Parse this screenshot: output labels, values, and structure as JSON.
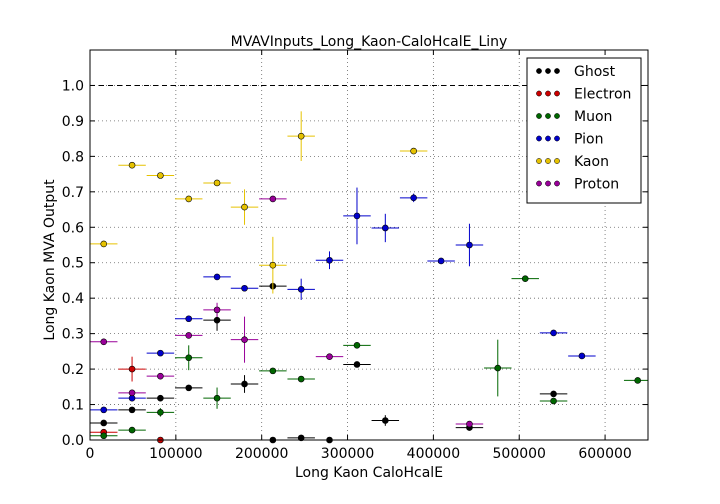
{
  "chart_data": {
    "type": "scatter",
    "title": "MVAVInputs_Long_Kaon-CaloHcalE_Liny",
    "xlabel": "Long Kaon CaloHcalE",
    "ylabel": "Long Kaon MVA Output",
    "xlim": [
      0,
      650000
    ],
    "ylim": [
      0,
      1.1
    ],
    "x_ticks": [
      0,
      100000,
      200000,
      300000,
      400000,
      500000,
      600000
    ],
    "x_tick_labels": [
      "0",
      "100000",
      "200000",
      "300000",
      "400000",
      "500000",
      "600000"
    ],
    "y_ticks": [
      0.0,
      0.1,
      0.2,
      0.3,
      0.4,
      0.5,
      0.6,
      0.7,
      0.8,
      0.9,
      1.0
    ],
    "y_tick_labels": [
      "0.0",
      "0.1",
      "0.2",
      "0.3",
      "0.4",
      "0.5",
      "0.6",
      "0.7",
      "0.8",
      "0.9",
      "1.0"
    ],
    "grid": true,
    "reference_line_y": 1.0,
    "legend_position": "top-right",
    "series": [
      {
        "name": "Ghost",
        "color": "#000000",
        "points": [
          {
            "x": 16000,
            "y": 0.048,
            "xerr": 16000,
            "yerr": 0.004
          },
          {
            "x": 49000,
            "y": 0.085,
            "xerr": 16000,
            "yerr": 0.004
          },
          {
            "x": 82000,
            "y": 0.118,
            "xerr": 16000,
            "yerr": 0.005
          },
          {
            "x": 115000,
            "y": 0.147,
            "xerr": 16000,
            "yerr": 0.006
          },
          {
            "x": 148000,
            "y": 0.338,
            "xerr": 16000,
            "yerr": 0.03
          },
          {
            "x": 180000,
            "y": 0.158,
            "xerr": 16000,
            "yerr": 0.025
          },
          {
            "x": 213000,
            "y": 0.434,
            "xerr": 16000,
            "yerr": 0.01
          },
          {
            "x": 213000,
            "y": 0.0,
            "xerr": 16000,
            "yerr": 0.0
          },
          {
            "x": 246000,
            "y": 0.006,
            "xerr": 16000,
            "yerr": 0.004
          },
          {
            "x": 279000,
            "y": 0.0,
            "xerr": 16000,
            "yerr": 0.0
          },
          {
            "x": 311000,
            "y": 0.213,
            "xerr": 16000,
            "yerr": 0.006
          },
          {
            "x": 344000,
            "y": 0.055,
            "xerr": 16000,
            "yerr": 0.015
          },
          {
            "x": 442000,
            "y": 0.035,
            "xerr": 16000,
            "yerr": 0.003
          },
          {
            "x": 540000,
            "y": 0.13,
            "xerr": 16000,
            "yerr": 0.005
          }
        ]
      },
      {
        "name": "Electron",
        "color": "#cc0000",
        "points": [
          {
            "x": 16000,
            "y": 0.022,
            "xerr": 16000,
            "yerr": 0.004
          },
          {
            "x": 49000,
            "y": 0.2,
            "xerr": 16000,
            "yerr": 0.035
          },
          {
            "x": 82000,
            "y": 0.0,
            "xerr": 16000,
            "yerr": 0.0
          }
        ]
      },
      {
        "name": "Muon",
        "color": "#006600",
        "points": [
          {
            "x": 16000,
            "y": 0.012,
            "xerr": 16000,
            "yerr": 0.004
          },
          {
            "x": 49000,
            "y": 0.028,
            "xerr": 16000,
            "yerr": 0.004
          },
          {
            "x": 82000,
            "y": 0.078,
            "xerr": 16000,
            "yerr": 0.012
          },
          {
            "x": 115000,
            "y": 0.232,
            "xerr": 16000,
            "yerr": 0.035
          },
          {
            "x": 148000,
            "y": 0.118,
            "xerr": 16000,
            "yerr": 0.03
          },
          {
            "x": 213000,
            "y": 0.195,
            "xerr": 16000,
            "yerr": 0.005
          },
          {
            "x": 246000,
            "y": 0.172,
            "xerr": 16000,
            "yerr": 0.005
          },
          {
            "x": 311000,
            "y": 0.267,
            "xerr": 16000,
            "yerr": 0.005
          },
          {
            "x": 475000,
            "y": 0.203,
            "xerr": 16000,
            "yerr": 0.08
          },
          {
            "x": 507000,
            "y": 0.455,
            "xerr": 16000,
            "yerr": 0.005
          },
          {
            "x": 540000,
            "y": 0.11,
            "xerr": 16000,
            "yerr": 0.005
          },
          {
            "x": 638000,
            "y": 0.168,
            "xerr": 16000,
            "yerr": 0.004
          }
        ]
      },
      {
        "name": "Pion",
        "color": "#0000cc",
        "points": [
          {
            "x": 16000,
            "y": 0.085,
            "xerr": 16000,
            "yerr": 0.004
          },
          {
            "x": 49000,
            "y": 0.118,
            "xerr": 16000,
            "yerr": 0.004
          },
          {
            "x": 82000,
            "y": 0.245,
            "xerr": 16000,
            "yerr": 0.005
          },
          {
            "x": 115000,
            "y": 0.342,
            "xerr": 16000,
            "yerr": 0.005
          },
          {
            "x": 148000,
            "y": 0.46,
            "xerr": 16000,
            "yerr": 0.005
          },
          {
            "x": 180000,
            "y": 0.428,
            "xerr": 16000,
            "yerr": 0.008
          },
          {
            "x": 246000,
            "y": 0.425,
            "xerr": 16000,
            "yerr": 0.03
          },
          {
            "x": 279000,
            "y": 0.507,
            "xerr": 16000,
            "yerr": 0.025
          },
          {
            "x": 311000,
            "y": 0.632,
            "xerr": 16000,
            "yerr": 0.08
          },
          {
            "x": 344000,
            "y": 0.598,
            "xerr": 16000,
            "yerr": 0.04
          },
          {
            "x": 377000,
            "y": 0.683,
            "xerr": 16000,
            "yerr": 0.012
          },
          {
            "x": 409000,
            "y": 0.505,
            "xerr": 16000,
            "yerr": 0.004
          },
          {
            "x": 442000,
            "y": 0.55,
            "xerr": 16000,
            "yerr": 0.06
          },
          {
            "x": 540000,
            "y": 0.302,
            "xerr": 16000,
            "yerr": 0.004
          },
          {
            "x": 573000,
            "y": 0.237,
            "xerr": 16000,
            "yerr": 0.004
          }
        ]
      },
      {
        "name": "Kaon",
        "color": "#e6c200",
        "points": [
          {
            "x": 16000,
            "y": 0.553,
            "xerr": 16000,
            "yerr": 0.004
          },
          {
            "x": 49000,
            "y": 0.775,
            "xerr": 16000,
            "yerr": 0.004
          },
          {
            "x": 82000,
            "y": 0.746,
            "xerr": 16000,
            "yerr": 0.004
          },
          {
            "x": 115000,
            "y": 0.68,
            "xerr": 16000,
            "yerr": 0.004
          },
          {
            "x": 148000,
            "y": 0.725,
            "xerr": 16000,
            "yerr": 0.004
          },
          {
            "x": 180000,
            "y": 0.657,
            "xerr": 16000,
            "yerr": 0.05
          },
          {
            "x": 213000,
            "y": 0.493,
            "xerr": 16000,
            "yerr": 0.08
          },
          {
            "x": 246000,
            "y": 0.857,
            "xerr": 16000,
            "yerr": 0.07
          },
          {
            "x": 377000,
            "y": 0.815,
            "xerr": 16000,
            "yerr": 0.004
          }
        ]
      },
      {
        "name": "Proton",
        "color": "#990099",
        "points": [
          {
            "x": 16000,
            "y": 0.277,
            "xerr": 16000,
            "yerr": 0.004
          },
          {
            "x": 49000,
            "y": 0.133,
            "xerr": 16000,
            "yerr": 0.004
          },
          {
            "x": 82000,
            "y": 0.18,
            "xerr": 16000,
            "yerr": 0.004
          },
          {
            "x": 115000,
            "y": 0.295,
            "xerr": 16000,
            "yerr": 0.006
          },
          {
            "x": 148000,
            "y": 0.367,
            "xerr": 16000,
            "yerr": 0.02
          },
          {
            "x": 180000,
            "y": 0.283,
            "xerr": 16000,
            "yerr": 0.065
          },
          {
            "x": 213000,
            "y": 0.68,
            "xerr": 16000,
            "yerr": 0.004
          },
          {
            "x": 279000,
            "y": 0.235,
            "xerr": 16000,
            "yerr": 0.004
          },
          {
            "x": 442000,
            "y": 0.045,
            "xerr": 16000,
            "yerr": 0.004
          }
        ]
      }
    ]
  }
}
